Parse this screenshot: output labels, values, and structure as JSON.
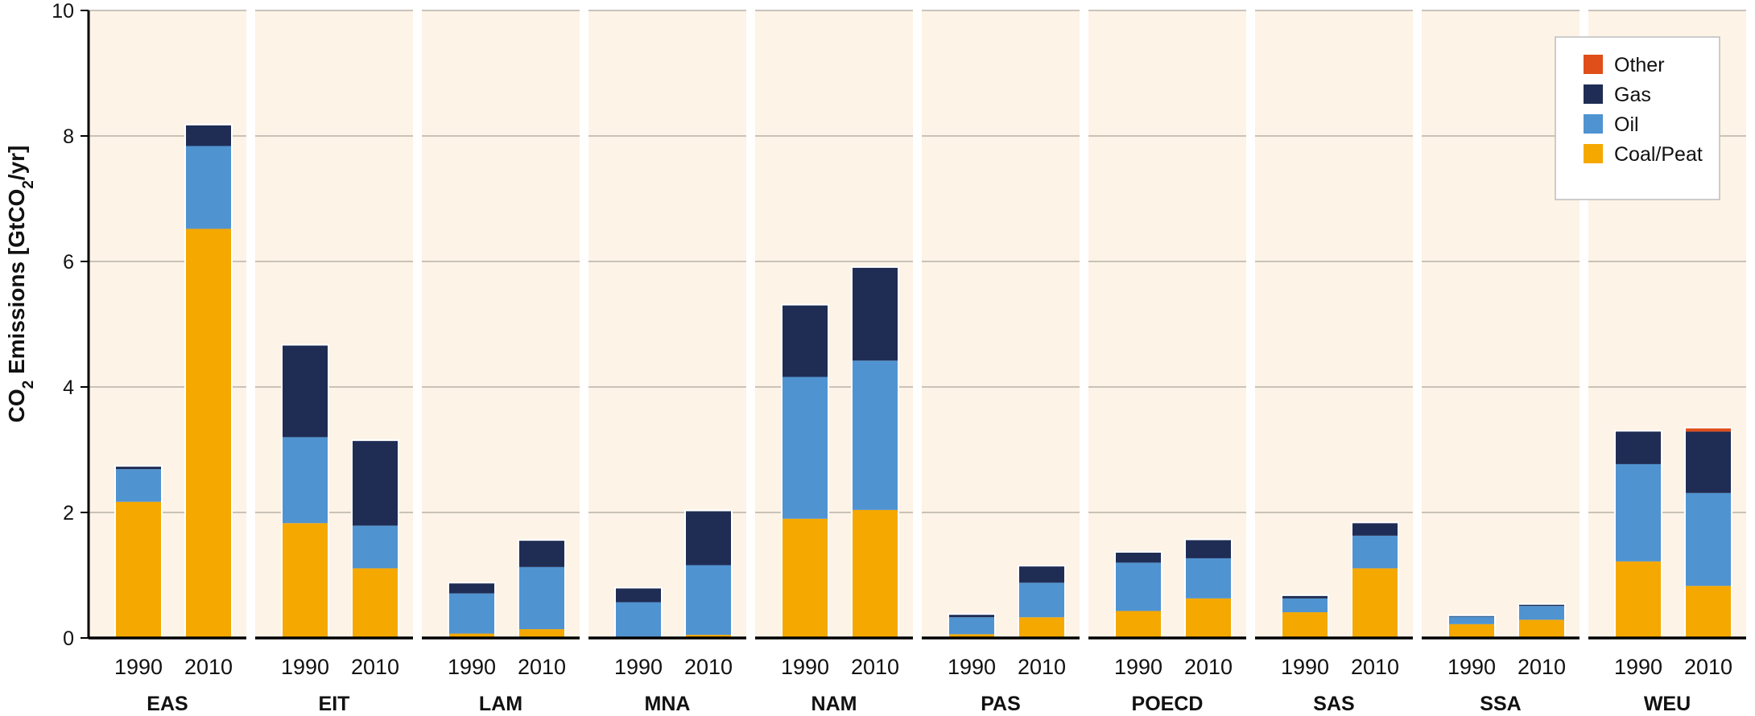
{
  "chart_data": {
    "type": "bar",
    "stacked": true,
    "ylabel": "CO2 Emissions [GtCO2/yr]",
    "ylim": [
      0,
      10
    ],
    "yticks": [
      0,
      2,
      4,
      6,
      8,
      10
    ],
    "grid": true,
    "legend_position": "top-right",
    "series_order": [
      "Coal/Peat",
      "Oil",
      "Gas",
      "Other"
    ],
    "legend_order": [
      "Other",
      "Gas",
      "Oil",
      "Coal/Peat"
    ],
    "colors": {
      "Coal/Peat": "#f5a800",
      "Oil": "#5093d1",
      "Gas": "#1f2d55",
      "Other": "#e04e1a",
      "panel_bg": "#fdf3e6",
      "grid": "#b8b2aa"
    },
    "groups": [
      {
        "region": "EAS",
        "bars": [
          {
            "year": "1990",
            "values": {
              "Coal/Peat": 2.17,
              "Oil": 0.52,
              "Gas": 0.04,
              "Other": 0.0
            }
          },
          {
            "year": "2010",
            "values": {
              "Coal/Peat": 6.52,
              "Oil": 1.32,
              "Gas": 0.33,
              "Other": 0.0
            }
          }
        ]
      },
      {
        "region": "EIT",
        "bars": [
          {
            "year": "1990",
            "values": {
              "Coal/Peat": 1.83,
              "Oil": 1.37,
              "Gas": 1.46,
              "Other": 0.0
            }
          },
          {
            "year": "2010",
            "values": {
              "Coal/Peat": 1.11,
              "Oil": 0.68,
              "Gas": 1.35,
              "Other": 0.0
            }
          }
        ]
      },
      {
        "region": "LAM",
        "bars": [
          {
            "year": "1990",
            "values": {
              "Coal/Peat": 0.07,
              "Oil": 0.64,
              "Gas": 0.16,
              "Other": 0.0
            }
          },
          {
            "year": "2010",
            "values": {
              "Coal/Peat": 0.14,
              "Oil": 0.99,
              "Gas": 0.42,
              "Other": 0.0
            }
          }
        ]
      },
      {
        "region": "MNA",
        "bars": [
          {
            "year": "1990",
            "values": {
              "Coal/Peat": 0.02,
              "Oil": 0.55,
              "Gas": 0.22,
              "Other": 0.0
            }
          },
          {
            "year": "2010",
            "values": {
              "Coal/Peat": 0.05,
              "Oil": 1.11,
              "Gas": 0.86,
              "Other": 0.0
            }
          }
        ]
      },
      {
        "region": "NAM",
        "bars": [
          {
            "year": "1990",
            "values": {
              "Coal/Peat": 1.9,
              "Oil": 2.26,
              "Gas": 1.14,
              "Other": 0.0
            }
          },
          {
            "year": "2010",
            "values": {
              "Coal/Peat": 2.04,
              "Oil": 2.38,
              "Gas": 1.48,
              "Other": 0.0
            }
          }
        ]
      },
      {
        "region": "PAS",
        "bars": [
          {
            "year": "1990",
            "values": {
              "Coal/Peat": 0.06,
              "Oil": 0.27,
              "Gas": 0.04,
              "Other": 0.0
            }
          },
          {
            "year": "2010",
            "values": {
              "Coal/Peat": 0.33,
              "Oil": 0.55,
              "Gas": 0.26,
              "Other": 0.0
            }
          }
        ]
      },
      {
        "region": "POECD",
        "bars": [
          {
            "year": "1990",
            "values": {
              "Coal/Peat": 0.43,
              "Oil": 0.77,
              "Gas": 0.16,
              "Other": 0.0
            }
          },
          {
            "year": "2010",
            "values": {
              "Coal/Peat": 0.63,
              "Oil": 0.64,
              "Gas": 0.29,
              "Other": 0.0
            }
          }
        ]
      },
      {
        "region": "SAS",
        "bars": [
          {
            "year": "1990",
            "values": {
              "Coal/Peat": 0.41,
              "Oil": 0.22,
              "Gas": 0.04,
              "Other": 0.0
            }
          },
          {
            "year": "2010",
            "values": {
              "Coal/Peat": 1.11,
              "Oil": 0.52,
              "Gas": 0.2,
              "Other": 0.0
            }
          }
        ]
      },
      {
        "region": "SSA",
        "bars": [
          {
            "year": "1990",
            "values": {
              "Coal/Peat": 0.22,
              "Oil": 0.12,
              "Gas": 0.01,
              "Other": 0.0
            }
          },
          {
            "year": "2010",
            "values": {
              "Coal/Peat": 0.29,
              "Oil": 0.22,
              "Gas": 0.02,
              "Other": 0.0
            }
          }
        ]
      },
      {
        "region": "WEU",
        "bars": [
          {
            "year": "1990",
            "values": {
              "Coal/Peat": 1.22,
              "Oil": 1.55,
              "Gas": 0.52,
              "Other": 0.0
            }
          },
          {
            "year": "2010",
            "values": {
              "Coal/Peat": 0.83,
              "Oil": 1.48,
              "Gas": 0.98,
              "Other": 0.05
            }
          }
        ]
      }
    ]
  }
}
